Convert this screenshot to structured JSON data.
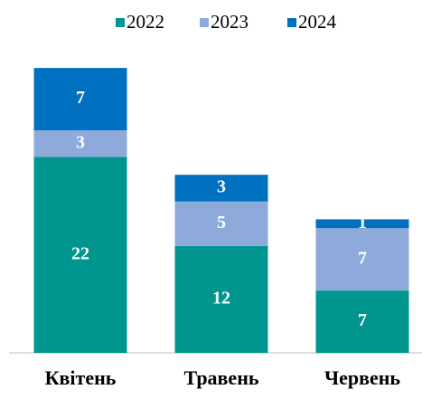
{
  "chart_data": {
    "type": "stacked_bar",
    "categories": [
      "Квітень",
      "Травень",
      "Червень"
    ],
    "series": [
      {
        "name": "2022",
        "color": "#00968f",
        "values": [
          22,
          12,
          7
        ]
      },
      {
        "name": "2023",
        "color": "#8eaadb",
        "values": [
          3,
          5,
          7
        ]
      },
      {
        "name": "2024",
        "color": "#0070c0",
        "values": [
          7,
          3,
          1
        ]
      }
    ],
    "legend": "top"
  }
}
